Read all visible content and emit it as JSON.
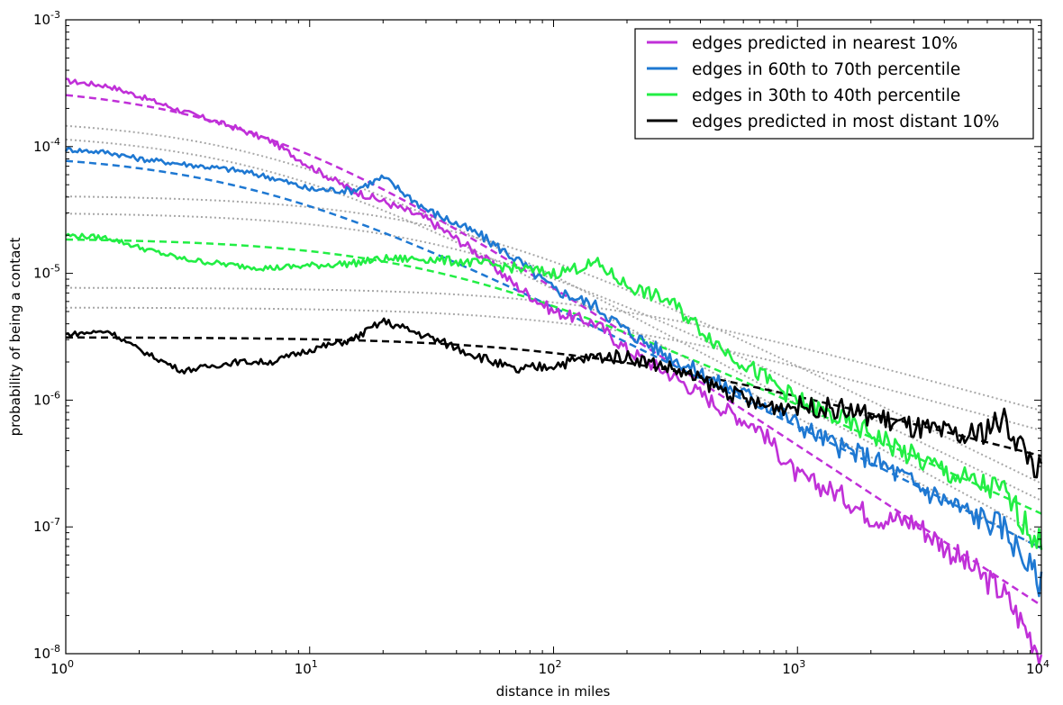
{
  "chart_data": {
    "type": "line",
    "title": "",
    "xlabel": "distance in miles",
    "ylabel": "probability of being a contact",
    "xscale": "log",
    "yscale": "log",
    "xlim": [
      1,
      10000
    ],
    "ylim": [
      1e-08,
      0.001
    ],
    "grid": false,
    "legend_position": "top-right",
    "x_ticks": [
      {
        "value": 1,
        "base": "10",
        "exp": "0"
      },
      {
        "value": 10,
        "base": "10",
        "exp": "1"
      },
      {
        "value": 100,
        "base": "10",
        "exp": "2"
      },
      {
        "value": 1000,
        "base": "10",
        "exp": "3"
      },
      {
        "value": 10000,
        "base": "10",
        "exp": "4"
      }
    ],
    "y_ticks": [
      {
        "value": 1e-08,
        "base": "10",
        "exp": "-8"
      },
      {
        "value": 1e-07,
        "base": "10",
        "exp": "-7"
      },
      {
        "value": 1e-06,
        "base": "10",
        "exp": "-6"
      },
      {
        "value": 1e-05,
        "base": "10",
        "exp": "-5"
      },
      {
        "value": 0.0001,
        "base": "10",
        "exp": "-4"
      },
      {
        "value": 0.001,
        "base": "10",
        "exp": "-3"
      }
    ],
    "series": [
      {
        "name": "edges predicted in nearest 10%",
        "color": "#c030d8",
        "x": [
          1,
          1.5,
          2,
          3,
          5,
          7,
          10,
          15,
          20,
          30,
          50,
          70,
          100,
          150,
          200,
          300,
          500,
          700,
          1000,
          1500,
          2000,
          3000,
          5000,
          7000,
          10000
        ],
        "y": [
          0.00033,
          0.0003,
          0.00025,
          0.00019,
          0.00014,
          0.00011,
          7e-05,
          4.5e-05,
          3.7e-05,
          2.7e-05,
          1.4e-05,
          8e-06,
          5e-06,
          4e-06,
          2.5e-06,
          1.6e-06,
          8.5e-07,
          6e-07,
          2.5e-07,
          1.8e-07,
          1.2e-07,
          1.1e-07,
          5e-08,
          3e-08,
          1e-08
        ]
      },
      {
        "name": "edges in 60th to 70th percentile",
        "color": "#1e78d2",
        "x": [
          1,
          1.5,
          2,
          3,
          5,
          7,
          10,
          15,
          20,
          30,
          50,
          70,
          100,
          150,
          200,
          300,
          500,
          700,
          1000,
          1500,
          2000,
          3000,
          5000,
          7000,
          10000
        ],
        "y": [
          9.5e-05,
          9e-05,
          8e-05,
          7.3e-05,
          6.5e-05,
          5.7e-05,
          4.6e-05,
          4.5e-05,
          5.7e-05,
          3.2e-05,
          2e-05,
          1.3e-05,
          7.5e-06,
          5.5e-06,
          3.5e-06,
          2.2e-06,
          1.3e-06,
          1e-06,
          6.5e-07,
          4.2e-07,
          3.5e-07,
          2.2e-07,
          1.3e-07,
          1e-07,
          3.5e-08
        ]
      },
      {
        "name": "edges in 30th to 40th percentile",
        "color": "#22ee44",
        "x": [
          1,
          1.5,
          2,
          3,
          5,
          7,
          10,
          15,
          20,
          30,
          50,
          70,
          100,
          150,
          200,
          300,
          500,
          700,
          1000,
          1500,
          2000,
          3000,
          5000,
          7000,
          10000
        ],
        "y": [
          2e-05,
          1.9e-05,
          1.6e-05,
          1.3e-05,
          1.15e-05,
          1.1e-05,
          1.15e-05,
          1.2e-05,
          1.3e-05,
          1.3e-05,
          1.2e-05,
          1.1e-05,
          1e-05,
          1.2e-05,
          8e-06,
          6e-06,
          2.5e-06,
          1.6e-06,
          1e-06,
          7e-07,
          5.5e-07,
          3.5e-07,
          2.3e-07,
          1.9e-07,
          7e-08
        ]
      },
      {
        "name": "edges predicted in most distant 10%",
        "color": "#000000",
        "x": [
          1,
          1.5,
          2,
          3,
          5,
          7,
          10,
          15,
          20,
          30,
          50,
          70,
          100,
          150,
          200,
          300,
          500,
          700,
          1000,
          1500,
          2000,
          3000,
          5000,
          7000,
          10000
        ],
        "y": [
          3.3e-06,
          3.5e-06,
          2.5e-06,
          1.7e-06,
          2e-06,
          2e-06,
          2.5e-06,
          3e-06,
          4.2e-06,
          3.2e-06,
          2.2e-06,
          1.7e-06,
          1.9e-06,
          2.2e-06,
          2.2e-06,
          1.8e-06,
          1.2e-06,
          9e-07,
          9e-07,
          8.5e-07,
          7.5e-07,
          6e-07,
          5e-07,
          7e-07,
          2.6e-07
        ]
      }
    ]
  }
}
